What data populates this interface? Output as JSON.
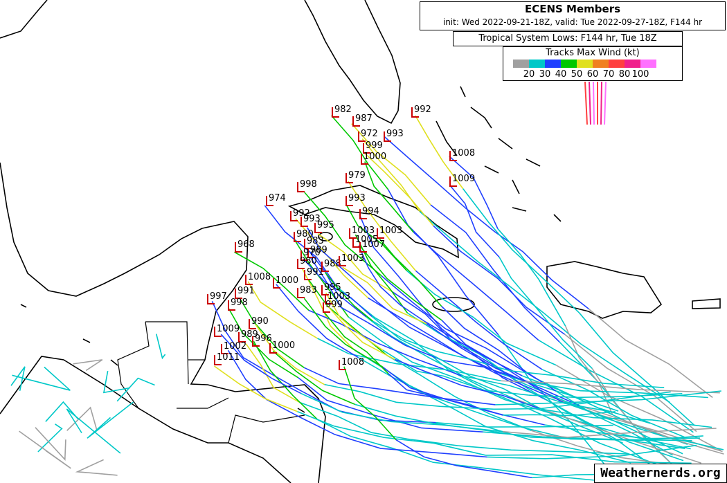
{
  "header": {
    "title": "ECENS Members",
    "subtitle": "init: Wed 2022-09-21-18Z, valid: Tue 2022-09-27-18Z, F144 hr",
    "lows_title": "Tropical System Lows: F144 hr, Tue 18Z"
  },
  "legend": {
    "title": "Tracks Max Wind (kt)",
    "colors": [
      "#a0a0a0",
      "#00c8c8",
      "#2040ff",
      "#00c800",
      "#e0e020",
      "#f08020",
      "#ff4040",
      "#f0208c",
      "#ff70ff"
    ],
    "labels": [
      20,
      30,
      40,
      50,
      60,
      70,
      80,
      100
    ]
  },
  "lows": [
    982,
    987,
    972,
    993,
    999,
    1000,
    992,
    1008,
    1009,
    979,
    998,
    974,
    993,
    994,
    992,
    993,
    995,
    1003,
    1003,
    1005,
    1007,
    980,
    983,
    989,
    970,
    980,
    988,
    1003,
    991,
    968,
    1008,
    1000,
    983,
    995,
    1003,
    999,
    991,
    998,
    997,
    990,
    989,
    996,
    1000,
    1009,
    1002,
    1011,
    1008
  ],
  "watermark": "Weathernerds.org"
}
